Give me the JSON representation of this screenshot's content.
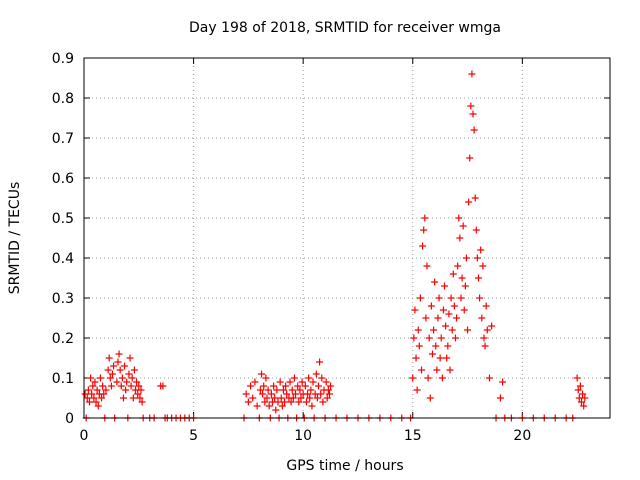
{
  "chart_data": {
    "type": "scatter",
    "title": "Day 198 of 2018, SRMTID for receiver wmga",
    "xlabel": "GPS time / hours",
    "ylabel": "SRMTID / TECUs",
    "xlim": [
      0,
      24
    ],
    "ylim": [
      0,
      0.9
    ],
    "xticks": [
      0,
      5,
      10,
      15,
      20
    ],
    "yticks": [
      0,
      0.1,
      0.2,
      0.3,
      0.4,
      0.5,
      0.6,
      0.7,
      0.8,
      0.9
    ],
    "grid": true,
    "marker": "+",
    "color": "#ff0000",
    "series": [
      {
        "name": "SRMTID",
        "points": [
          [
            0.05,
            0.06
          ],
          [
            0.1,
            0.0
          ],
          [
            0.15,
            0.05
          ],
          [
            0.2,
            0.07
          ],
          [
            0.25,
            0.04
          ],
          [
            0.3,
            0.1
          ],
          [
            0.35,
            0.06
          ],
          [
            0.4,
            0.08
          ],
          [
            0.45,
            0.05
          ],
          [
            0.5,
            0.09
          ],
          [
            0.55,
            0.04
          ],
          [
            0.6,
            0.07
          ],
          [
            0.65,
            0.03
          ],
          [
            0.7,
            0.06
          ],
          [
            0.75,
            0.1
          ],
          [
            0.8,
            0.05
          ],
          [
            0.85,
            0.08
          ],
          [
            0.9,
            0.06
          ],
          [
            0.95,
            0.0
          ],
          [
            1.0,
            0.07
          ],
          [
            1.1,
            0.12
          ],
          [
            1.15,
            0.15
          ],
          [
            1.2,
            0.1
          ],
          [
            1.25,
            0.08
          ],
          [
            1.3,
            0.11
          ],
          [
            1.35,
            0.13
          ],
          [
            1.4,
            0.0
          ],
          [
            1.5,
            0.09
          ],
          [
            1.55,
            0.14
          ],
          [
            1.6,
            0.16
          ],
          [
            1.65,
            0.12
          ],
          [
            1.7,
            0.08
          ],
          [
            1.75,
            0.1
          ],
          [
            1.8,
            0.05
          ],
          [
            1.85,
            0.13
          ],
          [
            1.9,
            0.07
          ],
          [
            1.95,
            0.09
          ],
          [
            2.0,
            0.0
          ],
          [
            2.05,
            0.11
          ],
          [
            2.1,
            0.15
          ],
          [
            2.15,
            0.08
          ],
          [
            2.2,
            0.1
          ],
          [
            2.25,
            0.05
          ],
          [
            2.3,
            0.12
          ],
          [
            2.35,
            0.07
          ],
          [
            2.4,
            0.09
          ],
          [
            2.45,
            0.06
          ],
          [
            2.5,
            0.08
          ],
          [
            2.55,
            0.05
          ],
          [
            2.6,
            0.07
          ],
          [
            2.65,
            0.04
          ],
          [
            2.7,
            0.0
          ],
          [
            3.0,
            0.0
          ],
          [
            3.2,
            0.0
          ],
          [
            3.5,
            0.08
          ],
          [
            3.6,
            0.08
          ],
          [
            3.7,
            0.0
          ],
          [
            3.8,
            0.0
          ],
          [
            4.0,
            0.0
          ],
          [
            4.2,
            0.0
          ],
          [
            4.4,
            0.0
          ],
          [
            4.6,
            0.0
          ],
          [
            4.8,
            0.0
          ],
          [
            5.0,
            0.0
          ],
          [
            7.3,
            0.0
          ],
          [
            7.4,
            0.06
          ],
          [
            7.5,
            0.04
          ],
          [
            7.6,
            0.08
          ],
          [
            7.7,
            0.05
          ],
          [
            7.8,
            0.09
          ],
          [
            7.9,
            0.03
          ],
          [
            8.0,
            0.0
          ],
          [
            8.05,
            0.07
          ],
          [
            8.1,
            0.11
          ],
          [
            8.15,
            0.06
          ],
          [
            8.2,
            0.08
          ],
          [
            8.25,
            0.04
          ],
          [
            8.3,
            0.1
          ],
          [
            8.35,
            0.05
          ],
          [
            8.4,
            0.07
          ],
          [
            8.45,
            0.03
          ],
          [
            8.5,
            0.0
          ],
          [
            8.55,
            0.06
          ],
          [
            8.6,
            0.04
          ],
          [
            8.65,
            0.08
          ],
          [
            8.7,
            0.05
          ],
          [
            8.75,
            0.02
          ],
          [
            8.8,
            0.07
          ],
          [
            8.85,
            0.04
          ],
          [
            8.9,
            0.0
          ],
          [
            8.95,
            0.09
          ],
          [
            9.0,
            0.05
          ],
          [
            9.05,
            0.03
          ],
          [
            9.1,
            0.07
          ],
          [
            9.15,
            0.04
          ],
          [
            9.2,
            0.08
          ],
          [
            9.25,
            0.06
          ],
          [
            9.3,
            0.0
          ],
          [
            9.35,
            0.05
          ],
          [
            9.4,
            0.09
          ],
          [
            9.45,
            0.04
          ],
          [
            9.5,
            0.07
          ],
          [
            9.55,
            0.05
          ],
          [
            9.6,
            0.1
          ],
          [
            9.65,
            0.06
          ],
          [
            9.7,
            0.0
          ],
          [
            9.75,
            0.08
          ],
          [
            9.8,
            0.04
          ],
          [
            9.85,
            0.07
          ],
          [
            9.9,
            0.05
          ],
          [
            9.95,
            0.09
          ],
          [
            10.0,
            0.06
          ],
          [
            10.05,
            0.0
          ],
          [
            10.1,
            0.08
          ],
          [
            10.15,
            0.04
          ],
          [
            10.2,
            0.06
          ],
          [
            10.25,
            0.1
          ],
          [
            10.3,
            0.05
          ],
          [
            10.35,
            0.07
          ],
          [
            10.4,
            0.03
          ],
          [
            10.45,
            0.09
          ],
          [
            10.5,
            0.0
          ],
          [
            10.55,
            0.06
          ],
          [
            10.6,
            0.11
          ],
          [
            10.65,
            0.05
          ],
          [
            10.7,
            0.08
          ],
          [
            10.75,
            0.14
          ],
          [
            10.8,
            0.06
          ],
          [
            10.85,
            0.1
          ],
          [
            10.9,
            0.04
          ],
          [
            10.95,
            0.07
          ],
          [
            11.0,
            0.0
          ],
          [
            11.05,
            0.09
          ],
          [
            11.1,
            0.05
          ],
          [
            11.15,
            0.07
          ],
          [
            11.2,
            0.06
          ],
          [
            11.25,
            0.08
          ],
          [
            11.5,
            0.0
          ],
          [
            12.0,
            0.0
          ],
          [
            12.5,
            0.0
          ],
          [
            13.0,
            0.0
          ],
          [
            13.5,
            0.0
          ],
          [
            14.0,
            0.0
          ],
          [
            14.5,
            0.0
          ],
          [
            14.9,
            0.0
          ],
          [
            15.0,
            0.1
          ],
          [
            15.05,
            0.2
          ],
          [
            15.1,
            0.27
          ],
          [
            15.15,
            0.15
          ],
          [
            15.2,
            0.07
          ],
          [
            15.25,
            0.22
          ],
          [
            15.3,
            0.18
          ],
          [
            15.35,
            0.3
          ],
          [
            15.4,
            0.12
          ],
          [
            15.45,
            0.43
          ],
          [
            15.5,
            0.47
          ],
          [
            15.55,
            0.5
          ],
          [
            15.6,
            0.25
          ],
          [
            15.65,
            0.38
          ],
          [
            15.7,
            0.1
          ],
          [
            15.75,
            0.2
          ],
          [
            15.8,
            0.05
          ],
          [
            15.85,
            0.28
          ],
          [
            15.9,
            0.16
          ],
          [
            15.95,
            0.22
          ],
          [
            16.0,
            0.34
          ],
          [
            16.05,
            0.18
          ],
          [
            16.1,
            0.12
          ],
          [
            16.15,
            0.25
          ],
          [
            16.2,
            0.3
          ],
          [
            16.25,
            0.15
          ],
          [
            16.3,
            0.2
          ],
          [
            16.35,
            0.1
          ],
          [
            16.4,
            0.27
          ],
          [
            16.45,
            0.33
          ],
          [
            16.5,
            0.23
          ],
          [
            16.55,
            0.15
          ],
          [
            16.6,
            0.18
          ],
          [
            16.65,
            0.26
          ],
          [
            16.7,
            0.12
          ],
          [
            16.75,
            0.3
          ],
          [
            16.8,
            0.22
          ],
          [
            16.85,
            0.36
          ],
          [
            16.9,
            0.28
          ],
          [
            16.95,
            0.2
          ],
          [
            17.0,
            0.25
          ],
          [
            17.05,
            0.38
          ],
          [
            17.1,
            0.5
          ],
          [
            17.15,
            0.45
          ],
          [
            17.2,
            0.3
          ],
          [
            17.25,
            0.35
          ],
          [
            17.3,
            0.48
          ],
          [
            17.35,
            0.27
          ],
          [
            17.4,
            0.33
          ],
          [
            17.45,
            0.4
          ],
          [
            17.5,
            0.22
          ],
          [
            17.55,
            0.54
          ],
          [
            17.6,
            0.65
          ],
          [
            17.65,
            0.78
          ],
          [
            17.7,
            0.86
          ],
          [
            17.75,
            0.76
          ],
          [
            17.8,
            0.72
          ],
          [
            17.85,
            0.55
          ],
          [
            17.9,
            0.47
          ],
          [
            17.95,
            0.4
          ],
          [
            18.0,
            0.35
          ],
          [
            18.05,
            0.3
          ],
          [
            18.1,
            0.42
          ],
          [
            18.15,
            0.25
          ],
          [
            18.2,
            0.38
          ],
          [
            18.25,
            0.2
          ],
          [
            18.3,
            0.18
          ],
          [
            18.35,
            0.28
          ],
          [
            18.4,
            0.22
          ],
          [
            18.5,
            0.1
          ],
          [
            18.6,
            0.23
          ],
          [
            18.8,
            0.0
          ],
          [
            19.0,
            0.05
          ],
          [
            19.1,
            0.09
          ],
          [
            19.2,
            0.0
          ],
          [
            19.5,
            0.0
          ],
          [
            20.0,
            0.0
          ],
          [
            20.5,
            0.0
          ],
          [
            21.0,
            0.0
          ],
          [
            21.5,
            0.0
          ],
          [
            22.0,
            0.0
          ],
          [
            22.3,
            0.0
          ],
          [
            22.5,
            0.1
          ],
          [
            22.55,
            0.07
          ],
          [
            22.6,
            0.05
          ],
          [
            22.65,
            0.08
          ],
          [
            22.7,
            0.04
          ],
          [
            22.75,
            0.06
          ],
          [
            22.8,
            0.03
          ],
          [
            22.85,
            0.05
          ]
        ]
      }
    ]
  }
}
